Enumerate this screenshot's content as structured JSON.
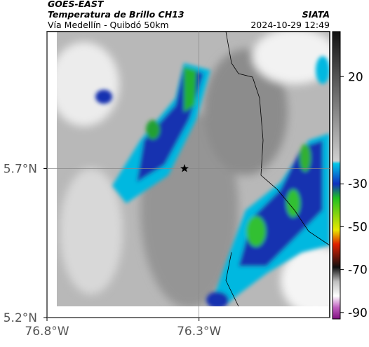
{
  "header": {
    "source": "GOES-EAST",
    "title": "Temperatura de Brillo CH13",
    "subtitle": "Vía Medellín - Quibdó 50km",
    "brand": "SIATA",
    "timestamp": "2024-10-29 12:49"
  },
  "map": {
    "xlim": [
      -76.8,
      -75.87
    ],
    "ylim": [
      5.2,
      6.16
    ],
    "xticks": [
      {
        "value": -76.8,
        "label": "76.8°W"
      },
      {
        "value": -76.3,
        "label": "76.3°W"
      }
    ],
    "yticks": [
      {
        "value": 5.7,
        "label": "5.7°N"
      },
      {
        "value": 5.2,
        "label": "5.2°N"
      }
    ],
    "grid": true
  },
  "colorbar": {
    "lim": [
      -93,
      41
    ],
    "ticks": [
      20,
      -30,
      -50,
      -70,
      -90
    ]
  }
}
